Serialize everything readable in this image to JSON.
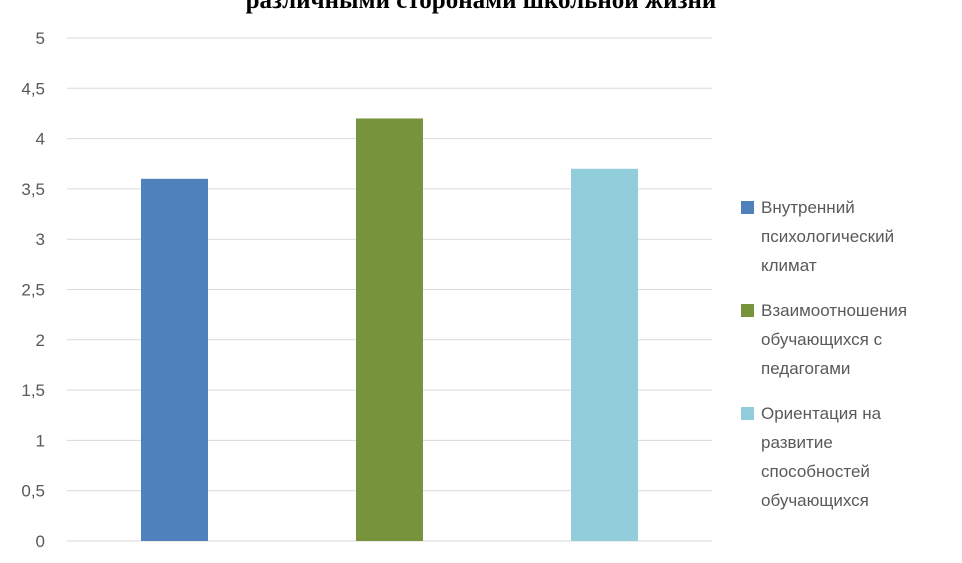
{
  "chart_data": {
    "type": "bar",
    "title": "различными сторонами школьной жизни",
    "xlabel": "",
    "ylabel": "",
    "ylim": [
      0,
      5
    ],
    "yticks": [
      "0",
      "0,5",
      "1",
      "1,5",
      "2",
      "2,5",
      "3",
      "3,5",
      "4",
      "4,5",
      "5"
    ],
    "grid": true,
    "legend_position": "right",
    "series": [
      {
        "name": "Внутренний психологический климат",
        "values": [
          3.6
        ],
        "color": "#4F81BD",
        "legend_lines": [
          "Внутренний",
          "психологический",
          "климат"
        ]
      },
      {
        "name": "Взаимоотношения обучающихся с педагогами",
        "values": [
          4.2
        ],
        "color": "#77933C",
        "legend_lines": [
          "Взаимоотношения",
          "обучающихся с",
          "педагогами"
        ]
      },
      {
        "name": "Ориентация на развитие способностей обучающихся",
        "values": [
          3.7
        ],
        "color": "#92CDDC",
        "legend_lines": [
          "Ориентация на",
          "развитие",
          "способностей",
          "обучающихся"
        ]
      }
    ]
  }
}
